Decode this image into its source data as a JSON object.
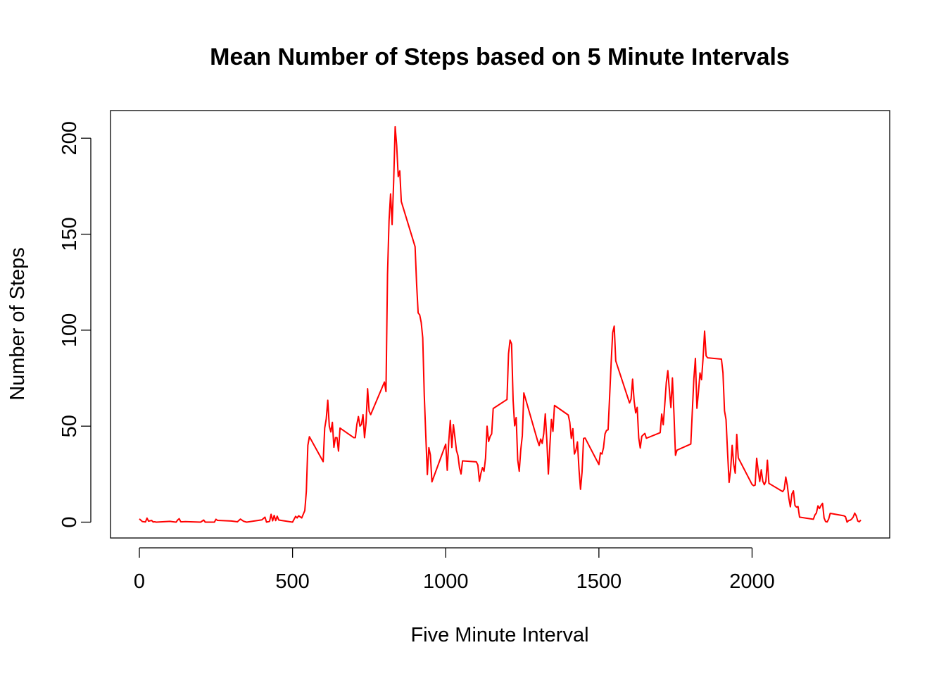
{
  "chart_data": {
    "type": "line",
    "title": "Mean Number of Steps based on 5 Minute Intervals",
    "x_label": "Five Minute Interval",
    "y_label": "Number of Steps",
    "color": "#ff0000",
    "grid": false,
    "xlim": [
      -94.2,
      2449.2
    ],
    "xticks": [
      0,
      500,
      1000,
      1500,
      2000
    ],
    "ylim": [
      -8.25,
      214.4
    ],
    "yticks": [
      0,
      50,
      100,
      150,
      200
    ],
    "x": [
      0,
      10,
      20,
      25,
      30,
      40,
      45,
      50,
      55,
      100,
      110,
      120,
      125,
      130,
      135,
      140,
      150,
      200,
      210,
      215,
      230,
      245,
      250,
      255,
      300,
      320,
      330,
      340,
      350,
      400,
      410,
      415,
      425,
      430,
      435,
      440,
      445,
      450,
      455,
      500,
      510,
      515,
      520,
      530,
      540,
      545,
      550,
      555,
      600,
      605,
      610,
      615,
      620,
      625,
      630,
      635,
      640,
      645,
      650,
      655,
      700,
      705,
      710,
      715,
      720,
      725,
      730,
      735,
      740,
      745,
      750,
      755,
      800,
      805,
      810,
      815,
      820,
      825,
      830,
      835,
      840,
      845,
      850,
      855,
      900,
      905,
      910,
      915,
      920,
      925,
      930,
      935,
      940,
      945,
      950,
      955,
      1000,
      1005,
      1010,
      1015,
      1020,
      1025,
      1030,
      1035,
      1040,
      1045,
      1050,
      1055,
      1100,
      1105,
      1110,
      1115,
      1120,
      1125,
      1130,
      1135,
      1140,
      1145,
      1150,
      1155,
      1200,
      1205,
      1210,
      1215,
      1220,
      1225,
      1230,
      1235,
      1240,
      1245,
      1250,
      1255,
      1300,
      1305,
      1310,
      1315,
      1320,
      1325,
      1330,
      1335,
      1340,
      1345,
      1350,
      1355,
      1400,
      1405,
      1410,
      1415,
      1420,
      1425,
      1430,
      1435,
      1440,
      1445,
      1450,
      1455,
      1500,
      1505,
      1510,
      1515,
      1520,
      1525,
      1530,
      1535,
      1540,
      1545,
      1550,
      1555,
      1600,
      1605,
      1610,
      1615,
      1620,
      1625,
      1630,
      1635,
      1640,
      1645,
      1650,
      1655,
      1700,
      1705,
      1710,
      1715,
      1720,
      1725,
      1730,
      1735,
      1740,
      1745,
      1750,
      1755,
      1800,
      1805,
      1810,
      1815,
      1820,
      1825,
      1830,
      1835,
      1840,
      1845,
      1850,
      1855,
      1900,
      1905,
      1910,
      1915,
      1920,
      1925,
      1930,
      1935,
      1940,
      1945,
      1950,
      1955,
      2000,
      2005,
      2010,
      2015,
      2020,
      2025,
      2030,
      2035,
      2040,
      2045,
      2050,
      2055,
      2100,
      2105,
      2110,
      2115,
      2120,
      2125,
      2130,
      2135,
      2140,
      2145,
      2150,
      2155,
      2200,
      2205,
      2210,
      2215,
      2220,
      2225,
      2230,
      2235,
      2240,
      2245,
      2250,
      2255,
      2300,
      2305,
      2310,
      2315,
      2320,
      2325,
      2330,
      2335,
      2340,
      2345,
      2350,
      2355
    ],
    "values": [
      1.7,
      0.3,
      0.1,
      2.1,
      0.5,
      0.9,
      0.1,
      0.2,
      0,
      0.4,
      0.2,
      0,
      1.1,
      1.8,
      0.2,
      0.2,
      0.3,
      0,
      1.1,
      0,
      0,
      0,
      1.5,
      0.9,
      0.6,
      0.2,
      1.6,
      0.5,
      0,
      1.2,
      2.6,
      0,
      0.4,
      4.1,
      0.7,
      3.5,
      0.8,
      3.1,
      1.1,
      0,
      3,
      2.2,
      3.3,
      2.2,
      6,
      16,
      40,
      44.5,
      31.5,
      49,
      53.8,
      63.5,
      50,
      47,
      52,
      39,
      44,
      44,
      37,
      49,
      44,
      44,
      51,
      55,
      50,
      51,
      56,
      44,
      52,
      69.5,
      57.8,
      56,
      73,
      68,
      129,
      157,
      171,
      155,
      177,
      206,
      196,
      180,
      183,
      167,
      143.5,
      124,
      109,
      108,
      104,
      96,
      66,
      45,
      24.8,
      38.8,
      34.9,
      21,
      40.6,
      27,
      42.4,
      53,
      38.9,
      50.8,
      44.3,
      37.4,
      34.7,
      28.3,
      25.1,
      31.9,
      31.4,
      29.7,
      21.3,
      25.5,
      28.4,
      26.5,
      33.4,
      50,
      42,
      44.6,
      46,
      59.2,
      63.9,
      87.7,
      94.8,
      92.8,
      63.4,
      50.2,
      54.5,
      32.4,
      26.5,
      37.7,
      45,
      67.3,
      42.3,
      39.9,
      43.3,
      41,
      46.2,
      56.4,
      42.8,
      25.1,
      39.9,
      53.5,
      47.3,
      60.8,
      55.8,
      52,
      43.6,
      48.7,
      35.5,
      37.5,
      41.8,
      27.5,
      17.1,
      26.1,
      43.6,
      43.8,
      30,
      36.1,
      35.5,
      38.8,
      46,
      47.8,
      48.1,
      65.3,
      82.9,
      98.7,
      102.1,
      84,
      62.1,
      64.1,
      74.5,
      63.2,
      56.9,
      59.8,
      43.9,
      38.6,
      44.7,
      45.5,
      46.2,
      43.7,
      46.6,
      56.3,
      50.7,
      61.2,
      72.7,
      78.9,
      68.9,
      59.7,
      75.1,
      56.5,
      34.8,
      37.5,
      40.7,
      58,
      74.7,
      85.3,
      59.3,
      67.8,
      77.7,
      74.2,
      85.3,
      99.5,
      86.6,
      85.6,
      84.9,
      77.8,
      58,
      53.4,
      36.3,
      20.7,
      27.4,
      40,
      30.2,
      25.5,
      45.7,
      33.5,
      19.6,
      19,
      19.3,
      33.3,
      26.8,
      21.2,
      27.3,
      21.3,
      19.5,
      21.3,
      32.3,
      20.2,
      15.9,
      17.2,
      23.5,
      19.2,
      12.5,
      8,
      14.7,
      16.3,
      8.7,
      7.8,
      8.1,
      2.6,
      1.5,
      3.7,
      4.8,
      8.5,
      7.1,
      8.7,
      9.8,
      2.2,
      0.3,
      0.1,
      1.6,
      4.6,
      3.3,
      2.8,
      0,
      0.8,
      1,
      1.6,
      2.6,
      4.7,
      3.3,
      0.6,
      0.2,
      1.1
    ]
  }
}
